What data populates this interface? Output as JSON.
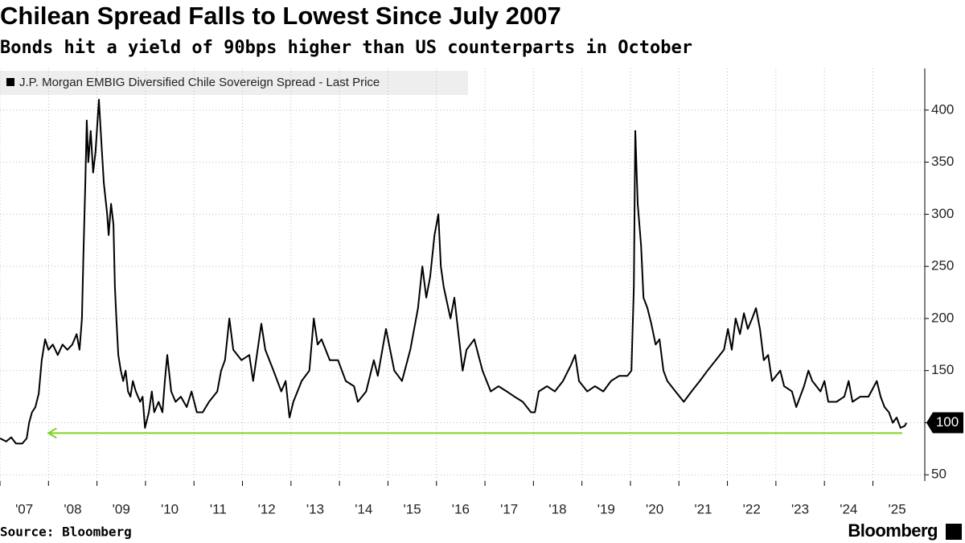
{
  "chart_data": {
    "type": "line",
    "title": "Chilean Spread Falls to Lowest Since July 2007",
    "subtitle": "Bonds hit a yield of 90bps higher than US counterparts in October",
    "source": "Source: Bloomberg",
    "brand": "Bloomberg",
    "series": [
      {
        "name": "J.P. Morgan EMBIG Diversified Chile Sovereign Spread - Last Price",
        "color": "#000000",
        "values": [
          85,
          82,
          86,
          80,
          80,
          85,
          100,
          110,
          115,
          128,
          160,
          180,
          170,
          175,
          165,
          175,
          170,
          175,
          185,
          170,
          200,
          260,
          330,
          390,
          350,
          380,
          340,
          360,
          410,
          370,
          330,
          300,
          280,
          310,
          290,
          230,
          200,
          165,
          150,
          140,
          150,
          130,
          125,
          140,
          130,
          120,
          125,
          95,
          110,
          130,
          110,
          120,
          110,
          140,
          165,
          130,
          120,
          125,
          115,
          130,
          110,
          110,
          120,
          130,
          150,
          160,
          200,
          170,
          160,
          165,
          140,
          195,
          170,
          150,
          130,
          140,
          105,
          120,
          140,
          150,
          200,
          175,
          180,
          160,
          160,
          140,
          135,
          120,
          130,
          160,
          145,
          190,
          150,
          140,
          170,
          210,
          250,
          220,
          240,
          280,
          300,
          250,
          230,
          200,
          220,
          150,
          170,
          180,
          150,
          130,
          135,
          130,
          125,
          120,
          110,
          110,
          130,
          135,
          130,
          140,
          155,
          165,
          140,
          130,
          135,
          130,
          140,
          145,
          145,
          150,
          230,
          380,
          310,
          270,
          220,
          210,
          195,
          175,
          180,
          150,
          140,
          130,
          120,
          130,
          140,
          150,
          160,
          170,
          190,
          170,
          200,
          185,
          205,
          190,
          200,
          210,
          190,
          160,
          165,
          140,
          150,
          135,
          130,
          115,
          135,
          150,
          140,
          130,
          140,
          120,
          120,
          125,
          140,
          120,
          125,
          125,
          140,
          125,
          115,
          110,
          100,
          105,
          95,
          97,
          100
        ]
      }
    ],
    "x": [
      2007.0,
      2007.13,
      2007.23,
      2007.33,
      2007.46,
      2007.55,
      2007.6,
      2007.66,
      2007.73,
      2007.8,
      2007.86,
      2007.93,
      2008.0,
      2008.09,
      2008.19,
      2008.29,
      2008.39,
      2008.49,
      2008.58,
      2008.64,
      2008.69,
      2008.72,
      2008.76,
      2008.79,
      2008.82,
      2008.87,
      2008.92,
      2008.97,
      2009.04,
      2009.09,
      2009.14,
      2009.21,
      2009.24,
      2009.29,
      2009.34,
      2009.37,
      2009.4,
      2009.44,
      2009.49,
      2009.54,
      2009.59,
      2009.64,
      2009.69,
      2009.74,
      2009.8,
      2009.89,
      2009.94,
      2009.99,
      2010.07,
      2010.13,
      2010.18,
      2010.27,
      2010.35,
      2010.4,
      2010.45,
      2010.53,
      2010.62,
      2010.73,
      2010.85,
      2010.95,
      2011.06,
      2011.18,
      2011.31,
      2011.48,
      2011.56,
      2011.64,
      2011.73,
      2011.81,
      2011.98,
      2012.14,
      2012.22,
      2012.39,
      2012.47,
      2012.64,
      2012.8,
      2012.89,
      2012.97,
      2013.05,
      2013.22,
      2013.38,
      2013.47,
      2013.55,
      2013.63,
      2013.8,
      2013.97,
      2014.13,
      2014.3,
      2014.38,
      2014.55,
      2014.71,
      2014.79,
      2014.96,
      2015.13,
      2015.29,
      2015.46,
      2015.62,
      2015.71,
      2015.79,
      2015.87,
      2015.96,
      2016.04,
      2016.09,
      2016.15,
      2016.29,
      2016.37,
      2016.54,
      2016.62,
      2016.78,
      2016.95,
      2017.12,
      2017.28,
      2017.45,
      2017.61,
      2017.78,
      2017.95,
      2018.03,
      2018.11,
      2018.28,
      2018.44,
      2018.61,
      2018.77,
      2018.86,
      2018.94,
      2019.11,
      2019.27,
      2019.44,
      2019.6,
      2019.77,
      2019.94,
      2020.02,
      2020.07,
      2020.1,
      2020.15,
      2020.22,
      2020.27,
      2020.35,
      2020.43,
      2020.52,
      2020.6,
      2020.68,
      2020.76,
      2020.93,
      2021.1,
      2021.26,
      2021.43,
      2021.59,
      2021.76,
      2021.93,
      2022.01,
      2022.09,
      2022.17,
      2022.26,
      2022.34,
      2022.42,
      2022.51,
      2022.59,
      2022.67,
      2022.75,
      2022.84,
      2022.92,
      2023.09,
      2023.17,
      2023.33,
      2023.42,
      2023.58,
      2023.67,
      2023.75,
      2023.92,
      2024.0,
      2024.08,
      2024.25,
      2024.41,
      2024.5,
      2024.58,
      2024.74,
      2024.91,
      2025.08,
      2025.16,
      2025.24,
      2025.33,
      2025.41,
      2025.49,
      2025.57,
      2025.66,
      2025.69
    ],
    "xlim": [
      2007,
      2026.07
    ],
    "xticks": [
      {
        "value": 2007,
        "label": "'07"
      },
      {
        "value": 2008,
        "label": "'08"
      },
      {
        "value": 2009,
        "label": "'09"
      },
      {
        "value": 2010,
        "label": "'10"
      },
      {
        "value": 2011,
        "label": "'11"
      },
      {
        "value": 2012,
        "label": "'12"
      },
      {
        "value": 2013,
        "label": "'13"
      },
      {
        "value": 2014,
        "label": "'14"
      },
      {
        "value": 2015,
        "label": "'15"
      },
      {
        "value": 2016,
        "label": "'16"
      },
      {
        "value": 2017,
        "label": "'17"
      },
      {
        "value": 2018,
        "label": "'18"
      },
      {
        "value": 2019,
        "label": "'19"
      },
      {
        "value": 2020,
        "label": "'20"
      },
      {
        "value": 2021,
        "label": "'21"
      },
      {
        "value": 2022,
        "label": "'22"
      },
      {
        "value": 2023,
        "label": "'23"
      },
      {
        "value": 2024,
        "label": "'24"
      },
      {
        "value": 2025,
        "label": "'25"
      }
    ],
    "ylim": [
      44,
      440
    ],
    "yticks": [
      50,
      100,
      150,
      200,
      250,
      300,
      350,
      400
    ],
    "grid": true,
    "last_price": 100,
    "reference_line": {
      "value": 90,
      "color": "#7ed321"
    }
  }
}
